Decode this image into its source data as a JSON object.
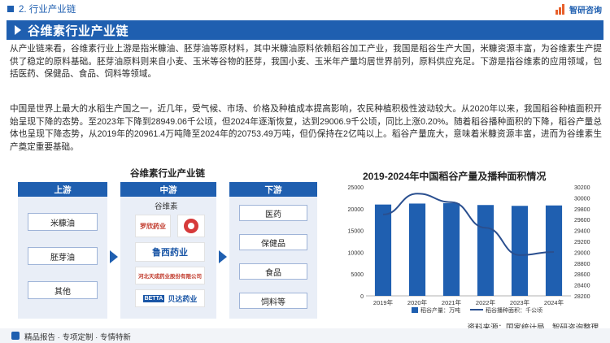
{
  "header": {
    "breadcrumb": "2. 行业产业链",
    "brand": "智研咨询"
  },
  "title": "谷维素行业产业链",
  "paragraphs": [
    "从产业链来看，谷维素行业上游是指米糠油、胚芽油等原材料，其中米糠油原料依赖稻谷加工产业，我国是稻谷生产大国，米糠资源丰富，为谷维素生产提供了稳定的原料基础。胚芽油原料则来自小麦、玉米等谷物的胚芽，我国小麦、玉米年产量均居世界前列，原料供应充足。下游是指谷维素的应用领域，包括医药、保健品、食品、饲料等领域。",
    "中国是世界上最大的水稻生产国之一，近几年，受气候、市场、价格及种植成本提高影响，农民种植积极性波动较大。从2020年以来，我国稻谷种植面积开始呈现下降的态势。至2023年下降到28949.06千公顷，但2024年逐渐恢复，达到29006.9千公顷，同比上涨0.20%。随着稻谷播种面积的下降，稻谷产量总体也呈现下降态势，从2019年的20961.4万吨降至2024年的20753.49万吨，但仍保持在2亿吨以上。稻谷产量庞大，意味着米糠资源丰富，进而为谷维素生产奠定重要基础。"
  ],
  "chain": {
    "title": "谷维素行业产业链",
    "upstream": {
      "label": "上游",
      "items": [
        "米糠油",
        "胚芽油",
        "其他"
      ]
    },
    "midstream": {
      "label": "中游",
      "subtitle": "谷维素",
      "companies": [
        "罗欣药业",
        "",
        "鲁西药业",
        "河北天成药业股份有限公司",
        "BETTA",
        "贝达药业"
      ]
    },
    "downstream": {
      "label": "下游",
      "items": [
        "医药",
        "保健品",
        "食品",
        "饲料等"
      ]
    }
  },
  "chart_data": {
    "type": "bar",
    "title": "2019-2024年中国稻谷产量及播种面积情况",
    "categories": [
      "2019年",
      "2020年",
      "2021年",
      "2022年",
      "2023年",
      "2024年"
    ],
    "series": [
      {
        "name": "稻谷产量：万吨",
        "type": "bar",
        "axis": "left",
        "color": "#1f5fb0",
        "values": [
          20961.4,
          21186.0,
          21284.2,
          20849.5,
          20660.3,
          20753.49
        ]
      },
      {
        "name": "稻谷播种面积：千公顷",
        "type": "line",
        "axis": "right",
        "color": "#1f5fb0",
        "values": [
          29694.0,
          30076.0,
          29921.0,
          29450.0,
          28949.06,
          29006.9
        ]
      }
    ],
    "yLeft": {
      "min": 0,
      "max": 25000,
      "ticks": [
        0,
        5000,
        10000,
        15000,
        20000,
        25000
      ]
    },
    "yRight": {
      "min": 28200,
      "max": 30200,
      "ticks": [
        28200,
        28400,
        28600,
        28800,
        29000,
        29200,
        29400,
        29600,
        29800,
        30000,
        30200
      ]
    },
    "legend": "bottom"
  },
  "source": "资料来源：国家统计局、智研咨询整理",
  "footer": "精品报告 · 专项定制 · 专情特新",
  "colors": {
    "accent": "#1f5fb0",
    "logo_orange": "#e8612c"
  }
}
